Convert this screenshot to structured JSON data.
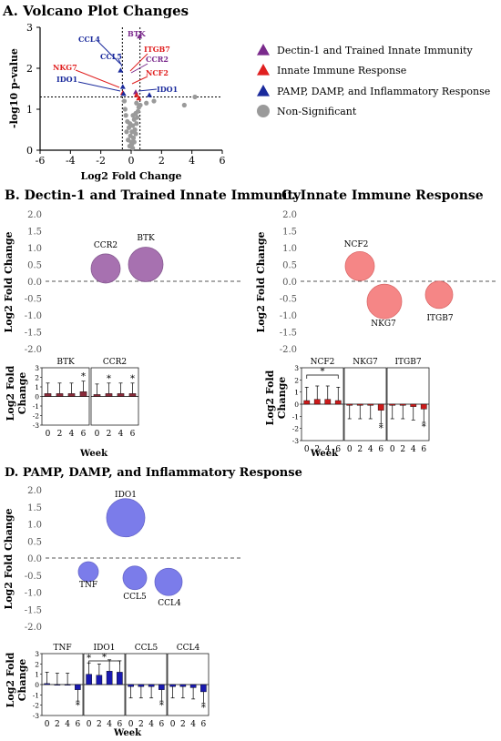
{
  "panel_a": {
    "title": "A. Volcano Plot Changes",
    "xlabel": "Log2 Fold Change",
    "ylabel": "-log10 p-value",
    "x_ticks": [
      "-6",
      "-4",
      "-2",
      "0",
      "2",
      "4",
      "6"
    ],
    "y_ticks": [
      "0",
      "1",
      "2",
      "3"
    ],
    "legend": [
      {
        "label": "Dectin-1 and Trained Innate Immunity",
        "color": "#7a2a8c",
        "shape": "triangle"
      },
      {
        "label": "Innate Immune Response",
        "color": "#e02020",
        "shape": "triangle"
      },
      {
        "label": "PAMP, DAMP, and Inflammatory Response",
        "color": "#1a2a9c",
        "shape": "triangle"
      },
      {
        "label": "Non-Significant",
        "color": "#9a9a9a",
        "shape": "circle"
      }
    ],
    "labels": {
      "BTK": "BTK",
      "CCL4": "CCL4",
      "CCL5": "CCL5",
      "ITGB7": "ITGB7",
      "CCR2": "CCR2",
      "NKG7": "NKG7",
      "NCF2": "NCF2",
      "IDO1_left": "IDO1",
      "IDO1_right": "IDO1"
    }
  },
  "panel_b": {
    "title": "B. Dectin-1 and Trained Innate Immunity",
    "ylabel": "Log2 Fold Change",
    "y_ticks": [
      "2.0",
      "1.5",
      "1.0",
      "0.5",
      "0.0",
      "-0.5",
      "-1.0",
      "-1.5",
      "-2.0"
    ],
    "bubbles": [
      {
        "label": "CCR2",
        "value": 0.38
      },
      {
        "label": "BTK",
        "value": 0.5
      }
    ],
    "bar_ylabel": "Log2 Fold Change",
    "bar_xlabel": "Week",
    "week_ticks": [
      "0",
      "2",
      "4",
      "6"
    ],
    "bar_yticks": [
      "3",
      "2",
      "1",
      "0",
      "-1",
      "-2",
      "-3"
    ],
    "bar_panels": [
      {
        "label": "BTK",
        "values": [
          0.3,
          0.3,
          0.3,
          0.5
        ],
        "stars": [
          "",
          "",
          "",
          "*"
        ]
      },
      {
        "label": "CCR2",
        "values": [
          0.2,
          0.3,
          0.3,
          0.3
        ],
        "stars": [
          "",
          "*",
          "",
          "*"
        ]
      }
    ]
  },
  "panel_c": {
    "title": "C. Innate Immune Response",
    "ylabel": "Log2 Fold Change",
    "y_ticks": [
      "2.0",
      "1.5",
      "1.0",
      "0.5",
      "0.0",
      "-0.5",
      "-1.0",
      "-1.5",
      "-2.0"
    ],
    "bubbles": [
      {
        "label": "NCF2",
        "value": 0.45
      },
      {
        "label": "NKG7",
        "value": -0.6
      },
      {
        "label": "ITGB7",
        "value": -0.4
      }
    ],
    "bar_ylabel": "Log2 Fold Change",
    "bar_xlabel": "Week",
    "week_ticks": [
      "0",
      "2",
      "4",
      "6"
    ],
    "bar_yticks": [
      "3",
      "2",
      "1",
      "0",
      "-1",
      "-2",
      "-3"
    ],
    "bar_panels": [
      {
        "label": "NCF2",
        "values": [
          0.3,
          0.4,
          0.4,
          0.3
        ],
        "stars": [
          "",
          "",
          "",
          ""
        ],
        "bracket": "*"
      },
      {
        "label": "NKG7",
        "values": [
          -0.1,
          -0.1,
          -0.1,
          -0.5
        ],
        "stars": [
          "",
          "",
          "",
          "*"
        ]
      },
      {
        "label": "ITGB7",
        "values": [
          -0.1,
          -0.1,
          -0.2,
          -0.4
        ],
        "stars": [
          "",
          "",
          "",
          "*"
        ]
      }
    ]
  },
  "panel_d": {
    "title": "D. PAMP, DAMP, and Inflammatory Response",
    "ylabel": "Log2 Fold Change",
    "y_ticks": [
      "2.0",
      "1.5",
      "1.0",
      "0.5",
      "0.0",
      "-0.5",
      "-1.0",
      "-1.5",
      "-2.0"
    ],
    "bubbles": [
      {
        "label": "IDO1",
        "value": 1.18
      },
      {
        "label": "TNF",
        "value": -0.4
      },
      {
        "label": "CCL5",
        "value": -0.58
      },
      {
        "label": "CCL4",
        "value": -0.7
      }
    ],
    "bar_ylabel": "Log2 Fold Change",
    "bar_xlabel": "Week",
    "week_ticks": [
      "0",
      "2",
      "4",
      "6"
    ],
    "bar_yticks": [
      "3",
      "2",
      "1",
      "0",
      "-1",
      "-2",
      "-3"
    ],
    "bar_panels": [
      {
        "label": "TNF",
        "values": [
          0.1,
          0.0,
          0.0,
          -0.5
        ],
        "stars": [
          "",
          "",
          "",
          "*"
        ]
      },
      {
        "label": "IDO1",
        "values": [
          1.0,
          0.9,
          1.3,
          1.2
        ],
        "stars": [
          "*",
          "",
          "",
          ""
        ],
        "bracket": "*"
      },
      {
        "label": "CCL5",
        "values": [
          -0.2,
          -0.2,
          -0.2,
          -0.5
        ],
        "stars": [
          "",
          "",
          "",
          "*"
        ]
      },
      {
        "label": "CCL4",
        "values": [
          -0.2,
          -0.2,
          -0.3,
          -0.7
        ],
        "stars": [
          "",
          "",
          "",
          "*"
        ]
      }
    ]
  },
  "chart_data": [
    {
      "type": "scatter",
      "title": "A. Volcano Plot Changes",
      "xlabel": "Log2 Fold Change",
      "ylabel": "-log10 p-value",
      "xlim": [
        -6,
        6
      ],
      "ylim": [
        0,
        3
      ],
      "thresholds": {
        "x": [
          -0.58,
          0.58
        ],
        "y": 1.3
      },
      "series": [
        {
          "name": "Dectin-1 and Trained Innate Immunity",
          "points": [
            {
              "label": "BTK",
              "x": 0.55,
              "y": 2.78
            },
            {
              "label": "CCR2",
              "x": 0.3,
              "y": 1.42
            }
          ]
        },
        {
          "name": "Innate Immune Response",
          "points": [
            {
              "label": "ITGB7",
              "x": 0.5,
              "y": 1.27
            },
            {
              "label": "NKG7",
              "x": -0.55,
              "y": 1.4
            },
            {
              "label": "NCF2",
              "x": 0.35,
              "y": 1.35
            }
          ]
        },
        {
          "name": "PAMP, DAMP, and Inflammatory Response",
          "points": [
            {
              "label": "CCL4",
              "x": -0.7,
              "y": 1.95
            },
            {
              "label": "CCL5",
              "x": -0.55,
              "y": 1.55
            },
            {
              "label": "IDO1",
              "x": -0.5,
              "y": 1.38
            },
            {
              "label": "IDO1",
              "x": 1.2,
              "y": 1.35
            }
          ]
        },
        {
          "name": "Non-Significant",
          "points": [
            {
              "x": 0.1,
              "y": 0.05
            },
            {
              "x": -0.1,
              "y": 0.1
            },
            {
              "x": 0.05,
              "y": 0.15
            },
            {
              "x": 0.2,
              "y": 0.2
            },
            {
              "x": -0.2,
              "y": 0.25
            },
            {
              "x": 0.15,
              "y": 0.3
            },
            {
              "x": -0.05,
              "y": 0.35
            },
            {
              "x": 0.3,
              "y": 0.4
            },
            {
              "x": -0.3,
              "y": 0.45
            },
            {
              "x": 0.25,
              "y": 0.5
            },
            {
              "x": -0.15,
              "y": 0.55
            },
            {
              "x": 0.1,
              "y": 0.6
            },
            {
              "x": 0.35,
              "y": 0.65
            },
            {
              "x": -0.25,
              "y": 0.7
            },
            {
              "x": 0.2,
              "y": 0.75
            },
            {
              "x": 0.4,
              "y": 0.8
            },
            {
              "x": -0.35,
              "y": 0.85
            },
            {
              "x": 0.3,
              "y": 0.9
            },
            {
              "x": 0.45,
              "y": 0.95
            },
            {
              "x": -0.4,
              "y": 1.0
            },
            {
              "x": 0.5,
              "y": 1.05
            },
            {
              "x": 0.6,
              "y": 1.1
            },
            {
              "x": 0.35,
              "y": 1.15
            },
            {
              "x": -0.45,
              "y": 1.2
            },
            {
              "x": 0.0,
              "y": 0.2
            },
            {
              "x": 0.05,
              "y": 0.45
            },
            {
              "x": -0.08,
              "y": 0.65
            },
            {
              "x": 0.12,
              "y": 0.85
            },
            {
              "x": 1.0,
              "y": 1.15
            },
            {
              "x": 1.5,
              "y": 1.2
            },
            {
              "x": 3.5,
              "y": 1.1
            },
            {
              "x": 4.2,
              "y": 1.3
            }
          ]
        }
      ]
    },
    {
      "type": "scatter",
      "title": "B. Dectin-1 and Trained Innate Immunity",
      "ylabel": "Log2 Fold Change",
      "ylim": [
        -2,
        2
      ],
      "points": [
        {
          "label": "CCR2",
          "y": 0.38
        },
        {
          "label": "BTK",
          "y": 0.5
        }
      ]
    },
    {
      "type": "scatter",
      "title": "C. Innate Immune Response",
      "ylabel": "Log2 Fold Change",
      "ylim": [
        -2,
        2
      ],
      "points": [
        {
          "label": "NCF2",
          "y": 0.45
        },
        {
          "label": "NKG7",
          "y": -0.6
        },
        {
          "label": "ITGB7",
          "y": -0.4
        }
      ]
    },
    {
      "type": "scatter",
      "title": "D. PAMP, DAMP, and Inflammatory Response",
      "ylabel": "Log2 Fold Change",
      "ylim": [
        -2,
        2
      ],
      "points": [
        {
          "label": "IDO1",
          "y": 1.18
        },
        {
          "label": "TNF",
          "y": -0.4
        },
        {
          "label": "CCL5",
          "y": -0.58
        },
        {
          "label": "CCL4",
          "y": -0.7
        }
      ]
    },
    {
      "type": "bar",
      "ylabel": "Log2 Fold Change",
      "xlabel": "Week",
      "categories": [
        "0",
        "2",
        "4",
        "6"
      ],
      "ylim": [
        -3,
        3
      ],
      "series": [
        {
          "name": "BTK",
          "values": [
            0.3,
            0.3,
            0.3,
            0.5
          ]
        },
        {
          "name": "CCR2",
          "values": [
            0.2,
            0.3,
            0.3,
            0.3
          ]
        }
      ]
    },
    {
      "type": "bar",
      "ylabel": "Log2 Fold Change",
      "xlabel": "Week",
      "categories": [
        "0",
        "2",
        "4",
        "6"
      ],
      "ylim": [
        -3,
        3
      ],
      "series": [
        {
          "name": "NCF2",
          "values": [
            0.3,
            0.4,
            0.4,
            0.3
          ]
        },
        {
          "name": "NKG7",
          "values": [
            -0.1,
            -0.1,
            -0.1,
            -0.5
          ]
        },
        {
          "name": "ITGB7",
          "values": [
            -0.1,
            -0.1,
            -0.2,
            -0.4
          ]
        }
      ]
    },
    {
      "type": "bar",
      "ylabel": "Log2 Fold Change",
      "xlabel": "Week",
      "categories": [
        "0",
        "2",
        "4",
        "6"
      ],
      "ylim": [
        -3,
        3
      ],
      "series": [
        {
          "name": "TNF",
          "values": [
            0.1,
            0.0,
            0.0,
            -0.5
          ]
        },
        {
          "name": "IDO1",
          "values": [
            1.0,
            0.9,
            1.3,
            1.2
          ]
        },
        {
          "name": "CCL5",
          "values": [
            -0.2,
            -0.2,
            -0.2,
            -0.5
          ]
        },
        {
          "name": "CCL4",
          "values": [
            -0.2,
            -0.2,
            -0.3,
            -0.7
          ]
        }
      ]
    }
  ]
}
